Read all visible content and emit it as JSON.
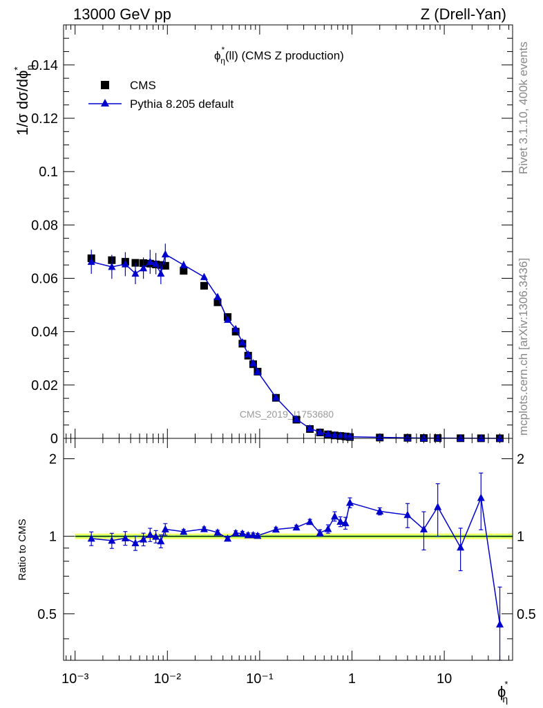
{
  "header": {
    "left": "13000 GeV pp",
    "right": "Z (Drell-Yan)"
  },
  "sidebar": {
    "rivet": "Rivet 3.1.10,  400k events",
    "source": "mcplots.cern.ch [arXiv:1306.3436]"
  },
  "plot": {
    "title": "ϕ*η(ll) (CMS Z production)",
    "ylabel": "1/σ dσ/dϕ*η",
    "watermark": "CMS_2019_I1753680",
    "ratio_ylabel": "Ratio to CMS",
    "xlabel": "ϕ*η"
  },
  "legend": {
    "data_label": "CMS",
    "mc_label": "Pythia 8.205 default"
  },
  "colors": {
    "data": "#000000",
    "mc": "#0000cc",
    "band_outer": "#ffff66",
    "band_inner": "#99ff66"
  },
  "chart_data": {
    "type": "scatter",
    "xscale": "log",
    "xlim": [
      0.00075,
      55
    ],
    "ylim": [
      0,
      0.155
    ],
    "ratio_ylim": [
      0.33,
      2.4
    ],
    "xticks": [
      {
        "v": 0.001,
        "label": "10⁻³"
      },
      {
        "v": 0.01,
        "label": "10⁻²"
      },
      {
        "v": 0.1,
        "label": "10⁻¹"
      },
      {
        "v": 1,
        "label": "1"
      },
      {
        "v": 10,
        "label": "10"
      }
    ],
    "yticks": [
      {
        "v": 0,
        "label": "0"
      },
      {
        "v": 0.02,
        "label": "0.02"
      },
      {
        "v": 0.04,
        "label": "0.04"
      },
      {
        "v": 0.06,
        "label": "0.06"
      },
      {
        "v": 0.08,
        "label": "0.08"
      },
      {
        "v": 0.1,
        "label": "0.1"
      },
      {
        "v": 0.12,
        "label": "0.12"
      },
      {
        "v": 0.14,
        "label": "0.14"
      }
    ],
    "ratio_yticks": [
      {
        "v": 0.5,
        "label": "0.5"
      },
      {
        "v": 1,
        "label": "1"
      },
      {
        "v": 2,
        "label": "2"
      }
    ],
    "x": [
      0.0015,
      0.0025,
      0.0035,
      0.0045,
      0.0055,
      0.0065,
      0.0075,
      0.0085,
      0.0095,
      0.015,
      0.025,
      0.035,
      0.045,
      0.055,
      0.065,
      0.075,
      0.085,
      0.095,
      0.15,
      0.25,
      0.35,
      0.45,
      0.55,
      0.65,
      0.75,
      0.85,
      0.95,
      2,
      4,
      6,
      8.5,
      15,
      25,
      40
    ],
    "series": [
      {
        "name": "CMS",
        "values": [
          0.0675,
          0.0668,
          0.0662,
          0.0658,
          0.0657,
          0.0655,
          0.0652,
          0.065,
          0.0647,
          0.0628,
          0.0572,
          0.051,
          0.0455,
          0.04,
          0.0355,
          0.031,
          0.0278,
          0.025,
          0.0152,
          0.007,
          0.0035,
          0.0022,
          0.0015,
          0.0011,
          0.0009,
          0.0007,
          0.0005,
          0.0003,
          0.0002,
          0.00012,
          0.0001,
          5e-05,
          3e-05,
          2e-05
        ]
      },
      {
        "name": "Pythia 8.205 default",
        "values": [
          0.0662,
          0.0643,
          0.0653,
          0.0618,
          0.0638,
          0.0662,
          0.0655,
          0.0618,
          0.069,
          0.065,
          0.0605,
          0.053,
          0.0445,
          0.041,
          0.036,
          0.0315,
          0.0282,
          0.025,
          0.0153,
          0.0072,
          0.0037,
          0.0023,
          0.0016,
          0.0012,
          0.001,
          0.0008,
          0.0006,
          0.0004,
          0.0002,
          0.0001,
          0.0001,
          5e-05,
          4e-05,
          1e-05
        ],
        "errors": [
          0.0045,
          0.0045,
          0.0045,
          0.004,
          0.004,
          0.0045,
          0.004,
          0.004,
          0.004,
          0.0015,
          0.0012,
          0.001,
          0.0008,
          0.0007,
          0.0006,
          0.0006,
          0.0005,
          0.0005,
          0.0003,
          0.0002,
          0.0001,
          0.0001,
          0.0001,
          0.0001,
          0.0001,
          0.0001,
          0.0001,
          0.0001,
          0.0001,
          0.0001,
          0.0001,
          0.0001,
          0.0001,
          0.0001
        ]
      }
    ],
    "ratio": {
      "values": [
        0.98,
        0.962,
        0.983,
        0.941,
        0.973,
        1.014,
        0.997,
        0.957,
        1.065,
        1.042,
        1.067,
        1.035,
        0.98,
        1.03,
        1.025,
        1.01,
        1.01,
        1.005,
        1.063,
        1.083,
        1.138,
        1.03,
        1.068,
        1.195,
        1.14,
        1.125,
        1.35,
        1.25,
        1.21,
        1.065,
        1.3,
        0.905,
        1.41,
        0.455
      ],
      "errors": [
        0.06,
        0.065,
        0.06,
        0.06,
        0.055,
        0.06,
        0.055,
        0.055,
        0.055,
        0.02,
        0.02,
        0.02,
        0.02,
        0.02,
        0.02,
        0.02,
        0.02,
        0.02,
        0.02,
        0.02,
        0.025,
        0.03,
        0.04,
        0.05,
        0.05,
        0.06,
        0.06,
        0.04,
        0.13,
        0.18,
        0.3,
        0.17,
        0.35,
        0.18
      ],
      "band_inner": 0.012,
      "band_outer": 0.025
    }
  }
}
